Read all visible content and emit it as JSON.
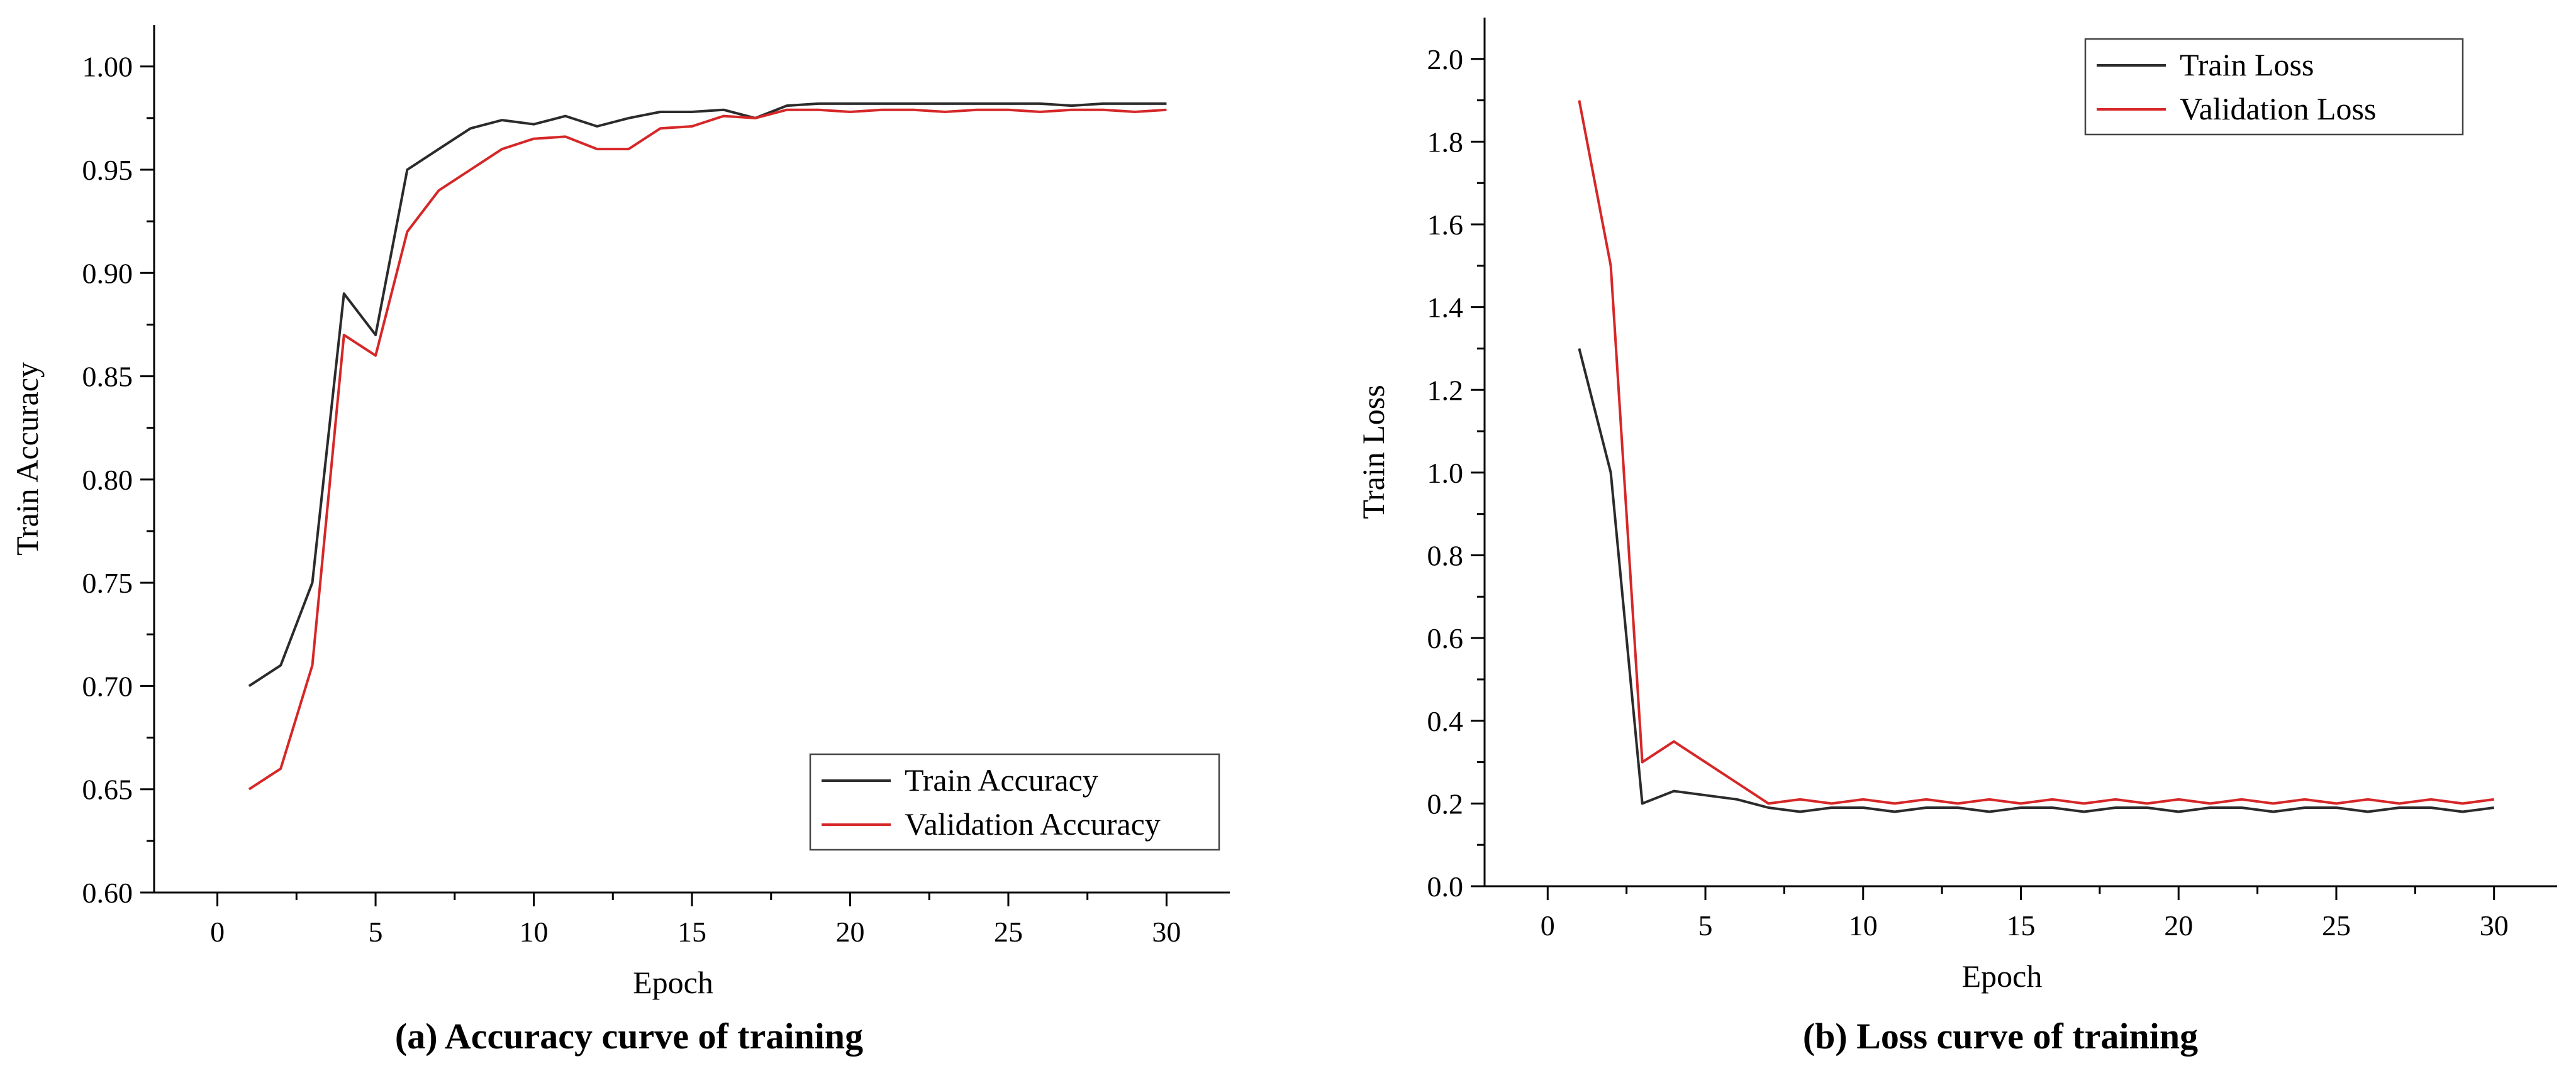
{
  "chart_data": [
    {
      "type": "line",
      "caption": "(a) Accuracy curve of training",
      "xlabel": "Epoch",
      "ylabel": "Train Accuracy",
      "xlim": [
        -2,
        32
      ],
      "ylim": [
        0.6,
        1.02
      ],
      "xticks": [
        "0",
        "5",
        "10",
        "15",
        "20",
        "25",
        "30"
      ],
      "yticks": [
        "0.60",
        "0.65",
        "0.70",
        "0.75",
        "0.80",
        "0.85",
        "0.90",
        "0.95",
        "1.00"
      ],
      "legend_position": "bottom-right",
      "grid": false,
      "x": [
        1,
        2,
        3,
        4,
        5,
        6,
        7,
        8,
        9,
        10,
        11,
        12,
        13,
        14,
        15,
        16,
        17,
        18,
        19,
        20,
        21,
        22,
        23,
        24,
        25,
        26,
        27,
        28,
        29,
        30
      ],
      "series": [
        {
          "name": "Train Accuracy",
          "color": "#2b2b2b",
          "values": [
            0.7,
            0.71,
            0.75,
            0.89,
            0.87,
            0.95,
            0.96,
            0.97,
            0.974,
            0.972,
            0.976,
            0.971,
            0.975,
            0.978,
            0.978,
            0.979,
            0.975,
            0.981,
            0.982,
            0.982,
            0.982,
            0.982,
            0.982,
            0.982,
            0.982,
            0.982,
            0.981,
            0.982,
            0.982,
            0.982
          ]
        },
        {
          "name": "Validation Accuracy",
          "color": "#d62728",
          "values": [
            0.65,
            0.66,
            0.71,
            0.87,
            0.86,
            0.92,
            0.94,
            0.95,
            0.96,
            0.965,
            0.966,
            0.96,
            0.96,
            0.97,
            0.971,
            0.976,
            0.975,
            0.979,
            0.979,
            0.978,
            0.979,
            0.979,
            0.978,
            0.979,
            0.979,
            0.978,
            0.979,
            0.979,
            0.978,
            0.979
          ]
        }
      ]
    },
    {
      "type": "line",
      "caption": "(b) Loss curve of training",
      "xlabel": "Epoch",
      "ylabel": "Train Loss",
      "xlim": [
        -2,
        32
      ],
      "ylim": [
        0.0,
        2.1
      ],
      "xticks": [
        "0",
        "5",
        "10",
        "15",
        "20",
        "25",
        "30"
      ],
      "yticks": [
        "0.0",
        "0.2",
        "0.4",
        "0.6",
        "0.8",
        "1.0",
        "1.2",
        "1.4",
        "1.6",
        "1.8",
        "2.0"
      ],
      "legend_position": "top-right",
      "grid": false,
      "x": [
        1,
        2,
        3,
        4,
        5,
        6,
        7,
        8,
        9,
        10,
        11,
        12,
        13,
        14,
        15,
        16,
        17,
        18,
        19,
        20,
        21,
        22,
        23,
        24,
        25,
        26,
        27,
        28,
        29,
        30
      ],
      "series": [
        {
          "name": "Train Loss",
          "color": "#2b2b2b",
          "values": [
            1.3,
            1.0,
            0.2,
            0.23,
            0.22,
            0.21,
            0.19,
            0.18,
            0.19,
            0.19,
            0.18,
            0.19,
            0.19,
            0.18,
            0.19,
            0.19,
            0.18,
            0.19,
            0.19,
            0.18,
            0.19,
            0.19,
            0.18,
            0.19,
            0.19,
            0.18,
            0.19,
            0.19,
            0.18,
            0.19
          ]
        },
        {
          "name": "Validation Loss",
          "color": "#d62728",
          "values": [
            1.9,
            1.5,
            0.3,
            0.35,
            0.3,
            0.25,
            0.2,
            0.21,
            0.2,
            0.21,
            0.2,
            0.21,
            0.2,
            0.21,
            0.2,
            0.21,
            0.2,
            0.21,
            0.2,
            0.21,
            0.2,
            0.21,
            0.2,
            0.21,
            0.2,
            0.21,
            0.2,
            0.21,
            0.2,
            0.21
          ]
        }
      ]
    }
  ]
}
